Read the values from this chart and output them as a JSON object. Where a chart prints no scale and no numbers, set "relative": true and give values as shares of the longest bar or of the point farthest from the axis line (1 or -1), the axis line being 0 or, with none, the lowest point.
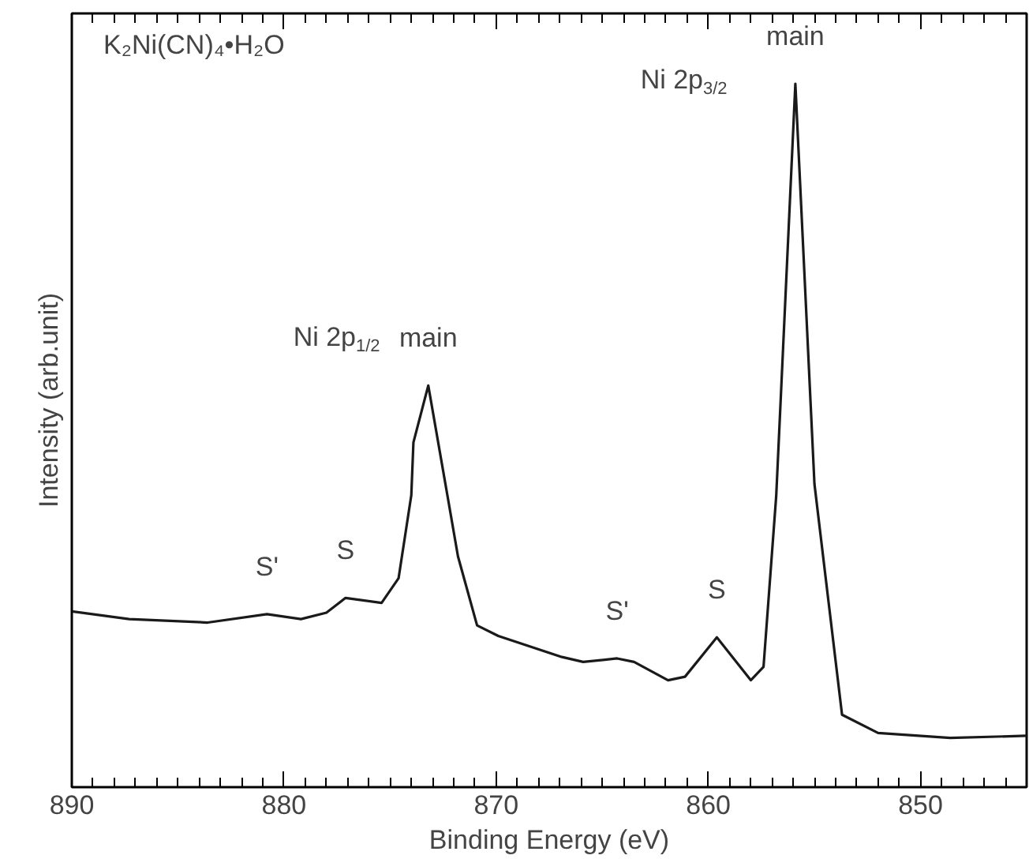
{
  "chart_data": {
    "type": "line",
    "relative": true,
    "xlabel": "Binding Energy (eV)",
    "ylabel": "Intensity (arb.unit)",
    "xlim": [
      890,
      845
    ],
    "xticks": [
      890,
      880,
      870,
      860,
      850
    ],
    "grid": false,
    "marker": "none",
    "line_style": "solid",
    "x": [
      890,
      887.3,
      883.6,
      880.8,
      879.2,
      878.0,
      877.1,
      875.4,
      874.6,
      874.0,
      873.9,
      873.2,
      872.3,
      871.8,
      870.9,
      869.9,
      866.9,
      865.9,
      864.3,
      863.5,
      861.9,
      861.1,
      859.6,
      858.0,
      857.4,
      856.8,
      855.9,
      855.0,
      853.7,
      852.0,
      848.6,
      845.0
    ],
    "series": [
      {
        "color": "#1a1a1a",
        "values": [
          0.25,
          0.239,
          0.234,
          0.246,
          0.239,
          0.248,
          0.269,
          0.262,
          0.297,
          0.415,
          0.49,
          0.571,
          0.415,
          0.328,
          0.23,
          0.215,
          0.185,
          0.178,
          0.183,
          0.178,
          0.152,
          0.157,
          0.213,
          0.152,
          0.171,
          0.415,
          1,
          0.431,
          0.103,
          0.077,
          0.07,
          0.073
        ]
      }
    ],
    "annotations": [
      "K₂Ni(CN)₄•H₂O",
      {
        "text": "main",
        "x": 873.2,
        "y": 0.571
      },
      "Ni 2p$_{1/2}$",
      {
        "text": "main",
        "x": 855.9,
        "y": 1
      },
      "Ni 2p$_{3/2}$",
      {
        "text": "S'",
        "x": 880.8,
        "y": 0.246
      },
      {
        "text": "S",
        "x": 877.1,
        "y": 0.269
      },
      {
        "text": "S'",
        "x": 864.3,
        "y": 0.183
      },
      {
        "text": "S",
        "x": 859.6,
        "y": 0.213
      }
    ]
  }
}
